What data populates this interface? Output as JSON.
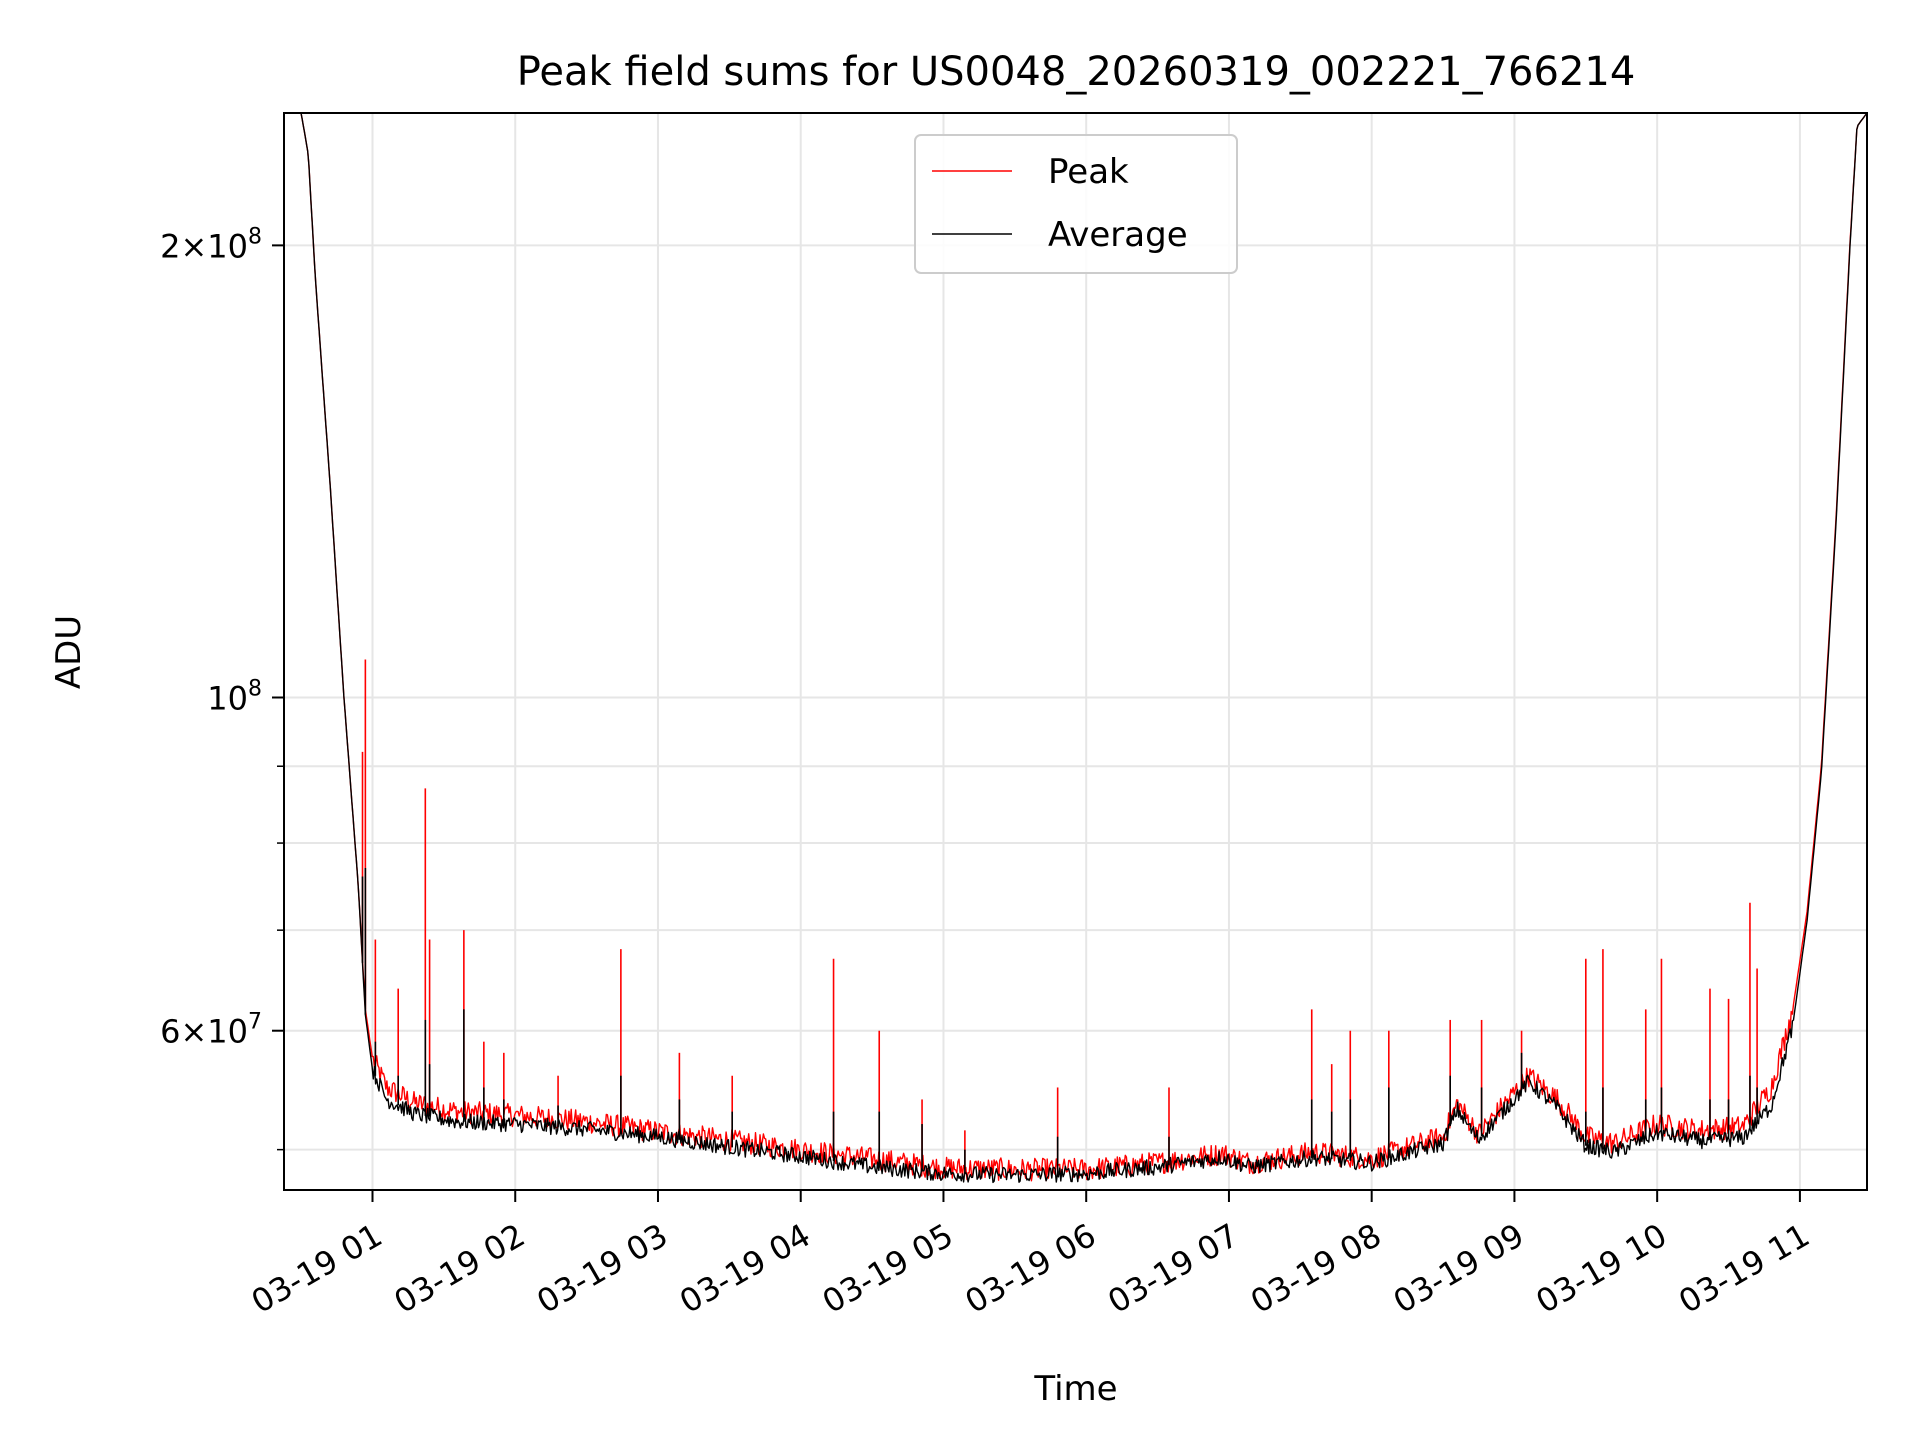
{
  "chart_data": {
    "type": "line",
    "title": "Peak field sums for US0048_20260319_002221_766214",
    "xlabel": "Time",
    "ylabel": "ADU",
    "yscale": "log",
    "ylim": [
      47000000,
      245000000
    ],
    "xlim_hours": [
      0.38,
      11.47
    ],
    "grid": true,
    "legend_position": "top-center",
    "x_tick_hours": [
      1,
      2,
      3,
      4,
      5,
      6,
      7,
      8,
      9,
      10,
      11
    ],
    "x_tick_labels": [
      "03-19 01",
      "03-19 02",
      "03-19 03",
      "03-19 04",
      "03-19 05",
      "03-19 06",
      "03-19 07",
      "03-19 08",
      "03-19 09",
      "03-19 10",
      "03-19 11"
    ],
    "y_major_ticks": [
      {
        "value": 200000000,
        "mantissa": "2",
        "exp": "8"
      },
      {
        "value": 100000000,
        "mantissa": "",
        "exp": "8"
      },
      {
        "value": 60000000,
        "mantissa": "6",
        "exp": "7"
      }
    ],
    "y_minor_ticks": [
      50000000,
      70000000,
      80000000,
      90000000
    ],
    "colors": {
      "peak": "#ff0000",
      "average": "#000000",
      "grid": "#e6e6e6"
    },
    "series": [
      {
        "name": "Peak",
        "color": "#ff0000",
        "points": [
          [
            0.38,
            245000000
          ],
          [
            0.5,
            245000000
          ],
          [
            0.55,
            230000000
          ],
          [
            0.6,
            190000000
          ],
          [
            0.7,
            140000000
          ],
          [
            0.8,
            100000000
          ],
          [
            0.9,
            75000000
          ],
          [
            0.95,
            62000000
          ],
          [
            1.0,
            57500000
          ],
          [
            1.1,
            55000000
          ],
          [
            1.3,
            53700000
          ],
          [
            1.6,
            53000000
          ],
          [
            2.0,
            52700000
          ],
          [
            2.5,
            52200000
          ],
          [
            3.0,
            51400000
          ],
          [
            3.5,
            50700000
          ],
          [
            4.0,
            50000000
          ],
          [
            4.5,
            49300000
          ],
          [
            5.0,
            48600000
          ],
          [
            5.5,
            48500000
          ],
          [
            6.0,
            48500000
          ],
          [
            6.5,
            49000000
          ],
          [
            6.95,
            49700000
          ],
          [
            7.15,
            49000000
          ],
          [
            7.6,
            49800000
          ],
          [
            8.0,
            49300000
          ],
          [
            8.5,
            51000000
          ],
          [
            8.6,
            53700000
          ],
          [
            8.7,
            52000000
          ],
          [
            8.75,
            51200000
          ],
          [
            9.1,
            56000000
          ],
          [
            9.3,
            54000000
          ],
          [
            9.5,
            51000000
          ],
          [
            9.7,
            50500000
          ],
          [
            10.0,
            52000000
          ],
          [
            10.3,
            51500000
          ],
          [
            10.6,
            51800000
          ],
          [
            10.8,
            55000000
          ],
          [
            10.95,
            62000000
          ],
          [
            11.05,
            72000000
          ],
          [
            11.15,
            90000000
          ],
          [
            11.25,
            130000000
          ],
          [
            11.35,
            200000000
          ],
          [
            11.4,
            240000000
          ],
          [
            11.47,
            245000000
          ]
        ]
      },
      {
        "name": "Average",
        "color": "#000000",
        "points": [
          [
            0.38,
            245000000
          ],
          [
            0.5,
            245000000
          ],
          [
            0.55,
            230000000
          ],
          [
            0.6,
            190000000
          ],
          [
            0.7,
            140000000
          ],
          [
            0.8,
            100000000
          ],
          [
            0.9,
            75000000
          ],
          [
            0.95,
            61500000
          ],
          [
            1.0,
            56500000
          ],
          [
            1.1,
            54000000
          ],
          [
            1.3,
            52800000
          ],
          [
            1.6,
            52200000
          ],
          [
            2.0,
            52000000
          ],
          [
            2.5,
            51600000
          ],
          [
            3.0,
            51000000
          ],
          [
            3.5,
            50200000
          ],
          [
            4.0,
            49500000
          ],
          [
            4.5,
            48700000
          ],
          [
            5.0,
            48200000
          ],
          [
            5.5,
            48100000
          ],
          [
            6.0,
            48200000
          ],
          [
            6.5,
            48700000
          ],
          [
            6.95,
            49400000
          ],
          [
            7.15,
            48700000
          ],
          [
            7.6,
            49400000
          ],
          [
            8.0,
            49000000
          ],
          [
            8.5,
            50500000
          ],
          [
            8.6,
            53200000
          ],
          [
            8.7,
            51500000
          ],
          [
            8.75,
            50800000
          ],
          [
            9.1,
            55500000
          ],
          [
            9.3,
            53300000
          ],
          [
            9.5,
            50300000
          ],
          [
            9.7,
            49800000
          ],
          [
            10.0,
            51300000
          ],
          [
            10.3,
            50700000
          ],
          [
            10.6,
            50900000
          ],
          [
            10.8,
            53500000
          ],
          [
            10.95,
            60500000
          ],
          [
            11.05,
            71000000
          ],
          [
            11.15,
            89000000
          ],
          [
            11.25,
            129000000
          ],
          [
            11.35,
            199000000
          ],
          [
            11.4,
            240000000
          ],
          [
            11.47,
            245000000
          ]
        ]
      }
    ],
    "spikes": [
      {
        "hour": 0.95,
        "peak": 106000000,
        "average": 77000000
      },
      {
        "hour": 0.93,
        "peak": 92000000,
        "average": 76000000
      },
      {
        "hour": 1.02,
        "peak": 69000000,
        "average": 59000000
      },
      {
        "hour": 1.18,
        "peak": 64000000,
        "average": 56000000
      },
      {
        "hour": 1.37,
        "peak": 87000000,
        "average": 61000000
      },
      {
        "hour": 1.4,
        "peak": 69000000,
        "average": 57000000
      },
      {
        "hour": 1.64,
        "peak": 70000000,
        "average": 62000000
      },
      {
        "hour": 1.78,
        "peak": 59000000,
        "average": 55000000
      },
      {
        "hour": 1.92,
        "peak": 58000000,
        "average": 54000000
      },
      {
        "hour": 2.3,
        "peak": 56000000,
        "average": 53500000
      },
      {
        "hour": 2.74,
        "peak": 68000000,
        "average": 56000000
      },
      {
        "hour": 3.15,
        "peak": 58000000,
        "average": 54000000
      },
      {
        "hour": 3.52,
        "peak": 56000000,
        "average": 53000000
      },
      {
        "hour": 4.23,
        "peak": 67000000,
        "average": 53000000
      },
      {
        "hour": 4.55,
        "peak": 60000000,
        "average": 53000000
      },
      {
        "hour": 4.85,
        "peak": 54000000,
        "average": 52000000
      },
      {
        "hour": 5.15,
        "peak": 51500000,
        "average": 50000000
      },
      {
        "hour": 5.8,
        "peak": 55000000,
        "average": 51000000
      },
      {
        "hour": 6.58,
        "peak": 55000000,
        "average": 51000000
      },
      {
        "hour": 7.58,
        "peak": 62000000,
        "average": 54000000
      },
      {
        "hour": 7.72,
        "peak": 57000000,
        "average": 53000000
      },
      {
        "hour": 7.85,
        "peak": 60000000,
        "average": 54000000
      },
      {
        "hour": 8.12,
        "peak": 60000000,
        "average": 55000000
      },
      {
        "hour": 8.55,
        "peak": 61000000,
        "average": 56000000
      },
      {
        "hour": 8.77,
        "peak": 61000000,
        "average": 55000000
      },
      {
        "hour": 9.05,
        "peak": 60000000,
        "average": 58000000
      },
      {
        "hour": 9.5,
        "peak": 67000000,
        "average": 53000000
      },
      {
        "hour": 9.62,
        "peak": 68000000,
        "average": 55000000
      },
      {
        "hour": 9.92,
        "peak": 62000000,
        "average": 54000000
      },
      {
        "hour": 10.03,
        "peak": 67000000,
        "average": 55000000
      },
      {
        "hour": 10.37,
        "peak": 64000000,
        "average": 54000000
      },
      {
        "hour": 10.5,
        "peak": 63000000,
        "average": 54000000
      },
      {
        "hour": 10.65,
        "peak": 73000000,
        "average": 56000000
      },
      {
        "hour": 10.7,
        "peak": 66000000,
        "average": 55000000
      }
    ]
  }
}
